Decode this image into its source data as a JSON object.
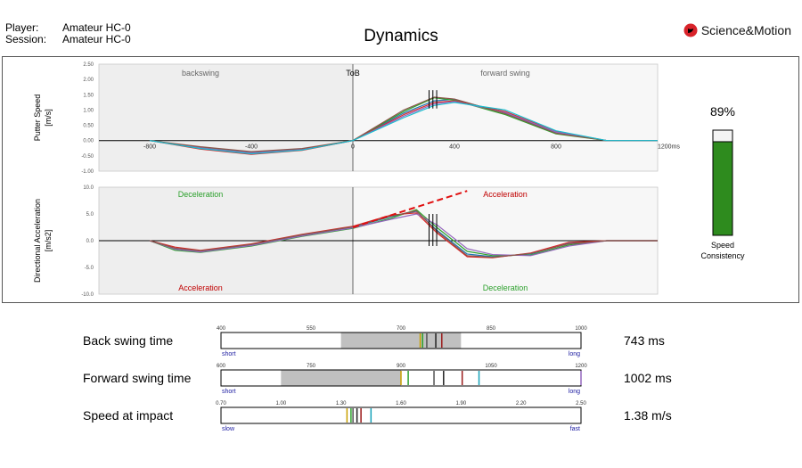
{
  "header": {
    "player_label": "Player:",
    "player_value": "Amateur HC-0",
    "session_label": "Session:",
    "session_value": "Amateur HC-0",
    "title": "Dynamics",
    "brand": "Science&Motion"
  },
  "colors": {
    "series": [
      "#1f77b4",
      "#2ca02c",
      "#d62728",
      "#9467bd",
      "#8c564b",
      "#17becf",
      "#bcbd22",
      "#e377c2",
      "#7f7f7f",
      "#0b5394"
    ],
    "decel": "#2ca02c",
    "accel": "#c00000",
    "bar_green": "#2e8b1e"
  },
  "chart_data": [
    {
      "type": "line",
      "ylabel": [
        "Putter Speed",
        "[m/s]"
      ],
      "ylim": [
        -1.0,
        2.5
      ],
      "yticks": [
        "2.50",
        "2.00",
        "1.50",
        "1.00",
        "0.50",
        "0.00",
        "-0.50",
        "-1.00"
      ],
      "xlim": [
        -1000,
        1200
      ],
      "xticks": [
        "-800",
        "-400",
        "0",
        "400",
        "800",
        "1200ms"
      ],
      "annotations": [
        "backswing",
        "ToB",
        "forward swing"
      ],
      "series": [
        {
          "x": [
            -800,
            -600,
            -400,
            -200,
            0,
            200,
            320,
            400,
            600,
            800,
            1000,
            1200
          ],
          "values": [
            0,
            -0.25,
            -0.42,
            -0.3,
            0,
            0.9,
            1.3,
            1.35,
            0.9,
            0.25,
            0,
            0
          ]
        },
        {
          "x": [
            -800,
            -600,
            -400,
            -200,
            0,
            200,
            320,
            400,
            600,
            800,
            1000,
            1200
          ],
          "values": [
            0,
            -0.22,
            -0.38,
            -0.28,
            0,
            0.95,
            1.4,
            1.32,
            0.85,
            0.22,
            0,
            0
          ]
        },
        {
          "x": [
            -800,
            -600,
            -400,
            -200,
            0,
            200,
            320,
            400,
            600,
            800,
            1000,
            1200
          ],
          "values": [
            0,
            -0.28,
            -0.45,
            -0.32,
            0,
            0.85,
            1.25,
            1.3,
            0.95,
            0.3,
            0,
            0
          ]
        },
        {
          "x": [
            -800,
            -600,
            -400,
            -200,
            0,
            200,
            320,
            400,
            600,
            800,
            1000,
            1200
          ],
          "values": [
            0,
            -0.24,
            -0.4,
            -0.29,
            0,
            0.8,
            1.2,
            1.28,
            0.92,
            0.28,
            0,
            0
          ]
        },
        {
          "x": [
            -800,
            -600,
            -400,
            -200,
            0,
            200,
            320,
            400,
            600,
            800,
            1000,
            1200
          ],
          "values": [
            0,
            -0.2,
            -0.36,
            -0.26,
            0,
            1.0,
            1.42,
            1.36,
            0.88,
            0.24,
            0,
            0
          ]
        },
        {
          "x": [
            -800,
            -600,
            -400,
            -200,
            0,
            200,
            320,
            400,
            600,
            800,
            1000,
            1200
          ],
          "values": [
            0,
            -0.26,
            -0.43,
            -0.31,
            0,
            0.75,
            1.15,
            1.25,
            1.0,
            0.32,
            0,
            0
          ]
        }
      ]
    },
    {
      "type": "line",
      "ylabel": [
        "Directional Acceleration",
        "[m/s2]"
      ],
      "ylim": [
        -10.0,
        10.0
      ],
      "yticks": [
        "10.0",
        "5.0",
        "0.0",
        "-5.0",
        "-10.0"
      ],
      "xlim": [
        -1000,
        1200
      ],
      "annotations": [
        "Deceleration",
        "Acceleration",
        "Acceleration",
        "Deceleration"
      ],
      "series": [
        {
          "x": [
            -800,
            -700,
            -600,
            -400,
            -200,
            0,
            150,
            250,
            330,
            450,
            550,
            700,
            850,
            1000,
            1200
          ],
          "values": [
            0,
            -1.5,
            -2.0,
            -0.8,
            1.0,
            2.5,
            4.5,
            5.5,
            2.0,
            -2.5,
            -3.0,
            -2.5,
            -0.5,
            0,
            0
          ]
        },
        {
          "x": [
            -800,
            -700,
            -600,
            -400,
            -200,
            0,
            150,
            250,
            330,
            450,
            550,
            700,
            850,
            1000,
            1200
          ],
          "values": [
            0,
            -1.8,
            -2.2,
            -1.0,
            0.8,
            2.3,
            4.2,
            5.8,
            2.5,
            -2.0,
            -2.8,
            -2.7,
            -0.8,
            0,
            0
          ]
        },
        {
          "x": [
            -800,
            -700,
            -600,
            -400,
            -200,
            0,
            150,
            250,
            330,
            450,
            550,
            700,
            850,
            1000,
            1200
          ],
          "values": [
            0,
            -1.2,
            -1.8,
            -0.6,
            1.2,
            2.7,
            4.8,
            5.2,
            1.5,
            -3.0,
            -3.2,
            -2.3,
            -0.3,
            0,
            0
          ]
        },
        {
          "x": [
            -800,
            -700,
            -600,
            -400,
            -200,
            0,
            150,
            250,
            330,
            450,
            550,
            700,
            850,
            1000,
            1200
          ],
          "values": [
            0,
            -1.6,
            -2.1,
            -0.9,
            0.9,
            2.4,
            4.0,
            5.0,
            3.0,
            -1.5,
            -2.6,
            -2.8,
            -1.0,
            0,
            0
          ]
        },
        {
          "x": [
            -800,
            -700,
            -600,
            -400,
            -200,
            0,
            150,
            250,
            330,
            450,
            550,
            700,
            850,
            1000,
            1200
          ],
          "values": [
            0,
            -1.4,
            -1.9,
            -0.7,
            1.1,
            2.6,
            4.6,
            5.6,
            1.8,
            -2.8,
            -3.1,
            -2.4,
            -0.6,
            0,
            0
          ]
        }
      ],
      "trend_line": {
        "x": [
          0,
          450
        ],
        "values": [
          2.5,
          9.3
        ]
      }
    },
    {
      "type": "bar",
      "title": "Speed Consistency",
      "values": [
        89
      ],
      "value_label": "89%",
      "ylim": [
        0,
        100
      ]
    },
    {
      "type": "scatter",
      "rows": [
        {
          "label": "Back swing time",
          "value_text": "743 ms",
          "xlim": [
            400,
            1000
          ],
          "ticks": [
            {
              "label": "400",
              "value": 400
            },
            {
              "label": "550",
              "value": 550
            },
            {
              "label": "700",
              "value": 700
            },
            {
              "label": "850",
              "value": 850
            },
            {
              "label": "1000",
              "value": 1000
            }
          ],
          "range": [
            600,
            800
          ],
          "markers": [
            732,
            736,
            743,
            758,
            768
          ],
          "left_label": "short",
          "right_label": "long"
        },
        {
          "label": "Forward swing time",
          "value_text": "1002 ms",
          "xlim": [
            600,
            1200
          ],
          "ticks": [
            {
              "label": "600",
              "value": 600
            },
            {
              "label": "750",
              "value": 750
            },
            {
              "label": "900",
              "value": 900
            },
            {
              "label": "1050",
              "value": 1050
            },
            {
              "label": "1200",
              "value": 1200
            }
          ],
          "range": [
            700,
            900
          ],
          "markers": [
            900,
            912,
            955,
            971,
            1002,
            1030,
            1200
          ],
          "left_label": "short",
          "right_label": "long"
        },
        {
          "label": "Speed at impact",
          "value_text": "1.38 m/s",
          "xlim": [
            0.7,
            2.5
          ],
          "ticks": [
            {
              "label": "0.70",
              "value": 0.7
            },
            {
              "label": "1.00",
              "value": 1.0
            },
            {
              "label": "1.30",
              "value": 1.3
            },
            {
              "label": "1.60",
              "value": 1.6
            },
            {
              "label": "1.90",
              "value": 1.9
            },
            {
              "label": "2.20",
              "value": 2.2
            },
            {
              "label": "2.50",
              "value": 2.5
            }
          ],
          "range": null,
          "markers": [
            1.33,
            1.35,
            1.36,
            1.38,
            1.4,
            1.45
          ],
          "left_label": "slow",
          "right_label": "fast"
        }
      ]
    }
  ]
}
